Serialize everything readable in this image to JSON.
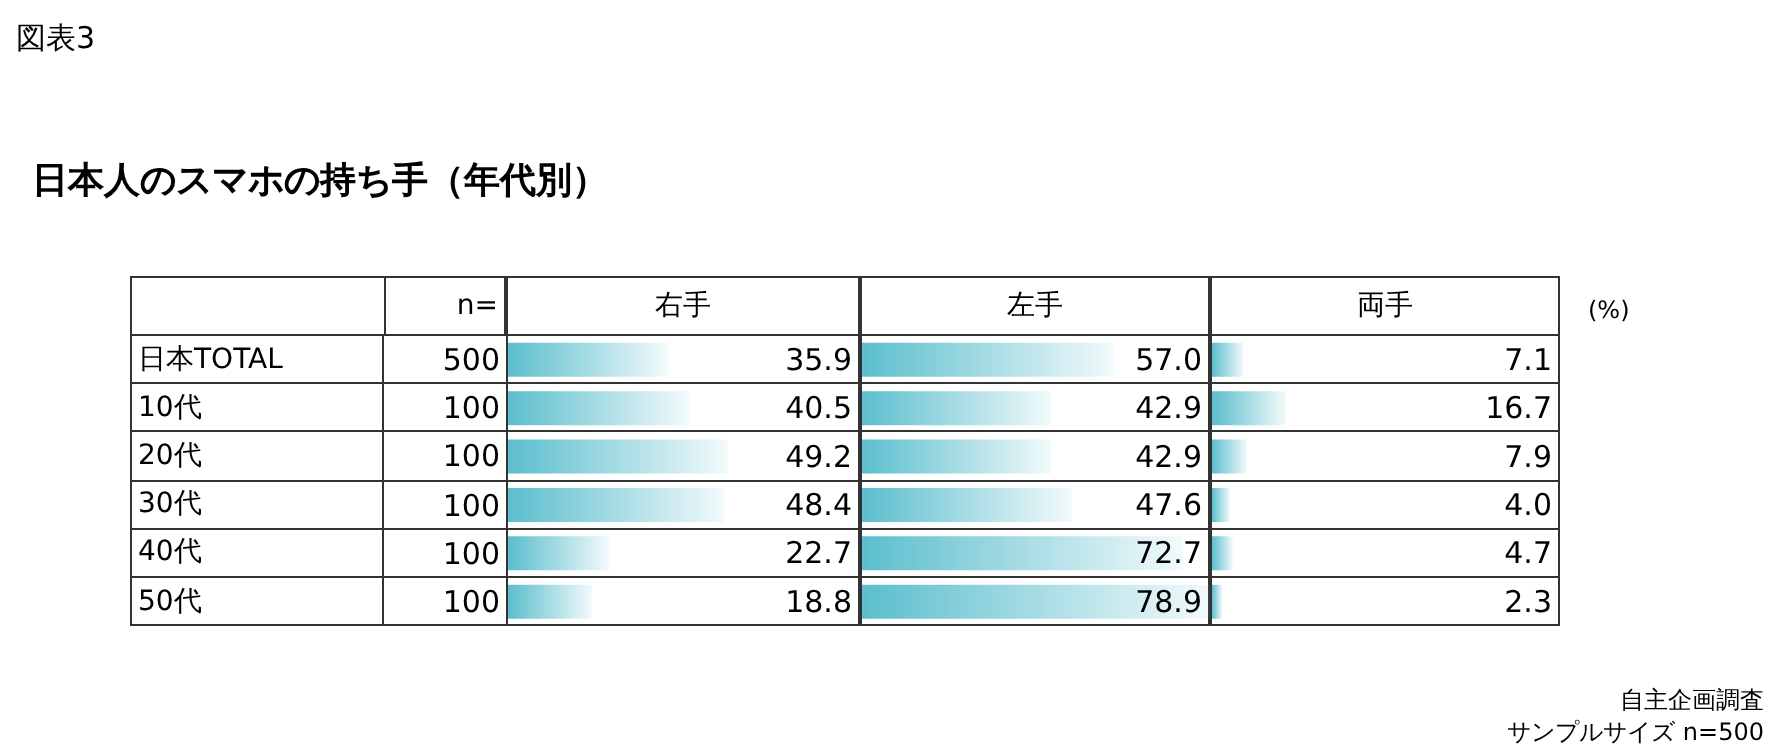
{
  "chart_data": [
    {
      "type": "bar",
      "orientation": "horizontal",
      "grid": true,
      "title": "日本人のスマホの持ち手（年代別）",
      "categories": [
        "日本TOTAL",
        "10代",
        "20代",
        "30代",
        "40代",
        "50代"
      ],
      "series": [
        {
          "name": "右手",
          "color": "#5bbecd",
          "values": [
            35.9,
            40.5,
            49.2,
            48.4,
            22.7,
            18.8
          ],
          "value_labels": [
            "35.9",
            "40.5",
            "49.2",
            "48.4",
            "22.7",
            "18.8"
          ]
        }
      ],
      "annotations": [
        "図表3",
        "(%)",
        "自主企画調査",
        "サンプルサイズ n=500",
        "n=",
        "500",
        "100",
        "100",
        "100",
        "100",
        "100"
      ]
    },
    {
      "type": "bar",
      "orientation": "horizontal",
      "grid": true,
      "series": [
        {
          "name": "左手",
          "color": "#5bbecd",
          "values": [
            57.0,
            42.9,
            42.9,
            47.6,
            72.7,
            78.9
          ],
          "value_labels": [
            "57.0",
            "42.9",
            "42.9",
            "47.6",
            "72.7",
            "78.9"
          ]
        }
      ]
    },
    {
      "type": "bar",
      "orientation": "horizontal",
      "grid": true,
      "series": [
        {
          "name": "両手",
          "color": "#5bbecd",
          "values": [
            7.1,
            16.7,
            7.9,
            4.0,
            4.7,
            2.3
          ],
          "value_labels": [
            "7.1",
            "16.7",
            "7.9",
            "4.0",
            "4.7",
            "2.3"
          ]
        }
      ]
    }
  ]
}
